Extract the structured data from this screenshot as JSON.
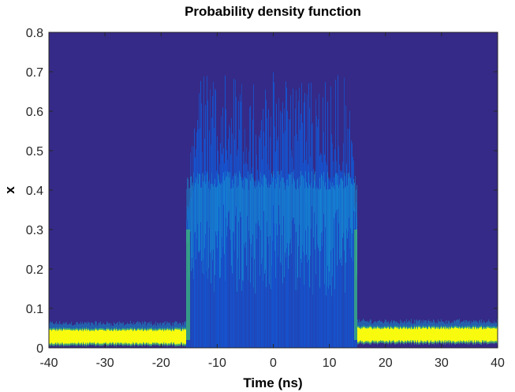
{
  "chart_data": {
    "type": "heatmap",
    "title": "Probability density function",
    "xlabel": "Time (ns)",
    "ylabel": "x",
    "xlim": [
      -40,
      40
    ],
    "ylim": [
      0,
      0.8
    ],
    "x_ticks": [
      "-40",
      "-30",
      "-20",
      "-10",
      "0",
      "10",
      "20",
      "30",
      "40"
    ],
    "y_ticks": [
      "0",
      "0.1",
      "0.2",
      "0.3",
      "0.4",
      "0.5",
      "0.6",
      "0.7",
      "0.8"
    ],
    "grid": false,
    "colorbar": false,
    "colormap": "parula",
    "colors": {
      "background": "#352a87",
      "low": "#0f5cdd",
      "mid": "#1496d4",
      "high": "#40bc72",
      "peak": "#f9fb0e"
    },
    "regions": [
      {
        "x_range": [
          -40,
          -15.5
        ],
        "x_center": 0.03,
        "x_spread": 0.01,
        "density": "peak"
      },
      {
        "x_range": [
          -15.5,
          15
        ],
        "x_center": 0.3,
        "x_max": 0.7,
        "density": "mid"
      },
      {
        "x_range": [
          15,
          40
        ],
        "x_center": 0.035,
        "x_spread": 0.012,
        "density": "peak"
      }
    ]
  }
}
